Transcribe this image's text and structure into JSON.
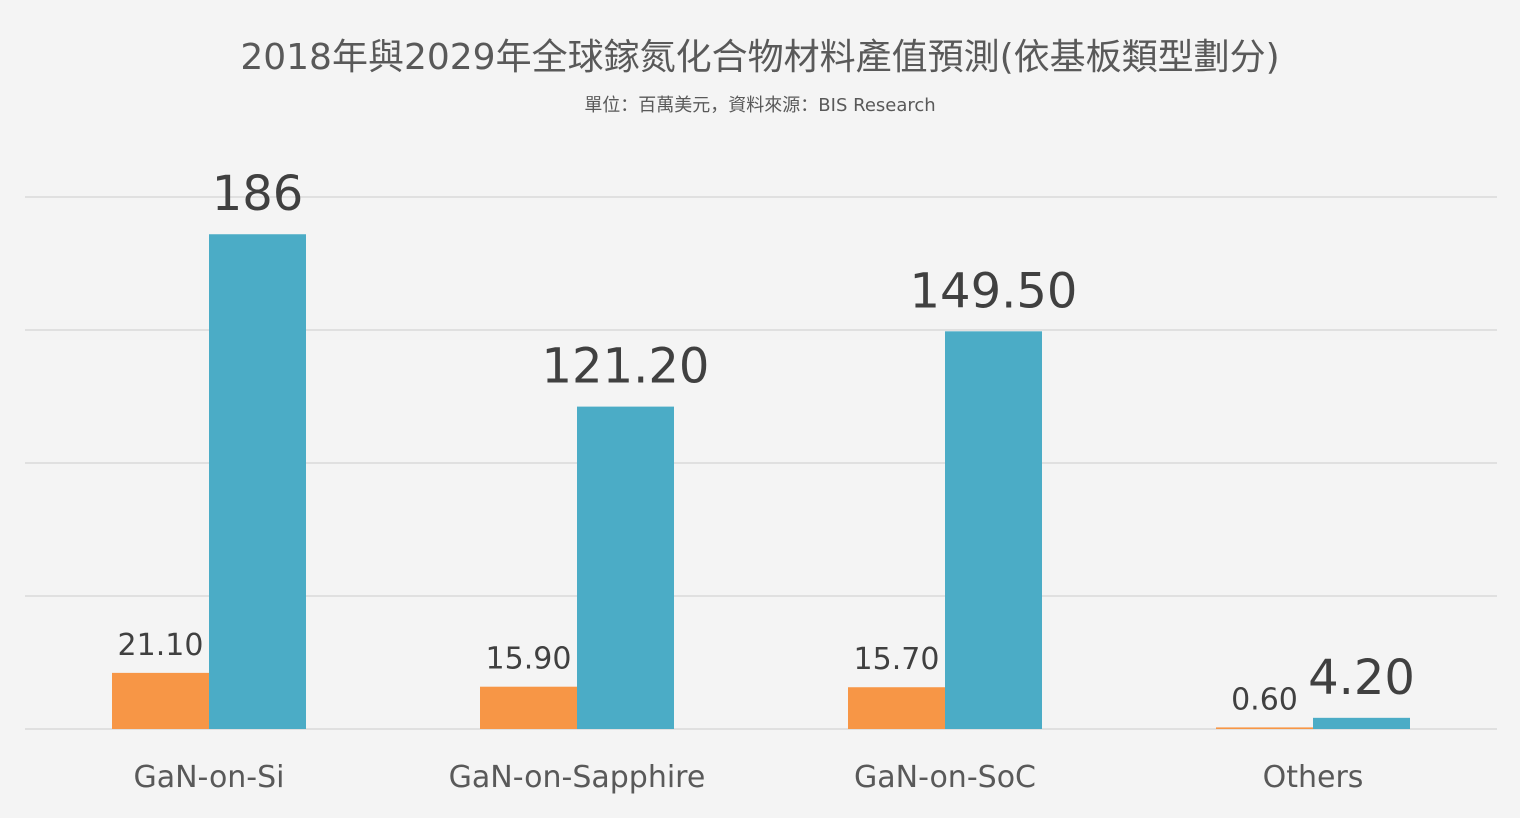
{
  "chart_data": {
    "type": "bar",
    "title": "2018年與2029年全球鎵氮化合物材料產值預測(依基板類型劃分)",
    "subtitle": "單位：百萬美元，資料來源：BIS Research",
    "categories": [
      "GaN-on-Si",
      "GaN-on-Sapphire",
      "GaN-on-SoC",
      "Others"
    ],
    "series": [
      {
        "values": [
          21.1,
          15.9,
          15.7,
          0.6
        ],
        "labels": [
          "21.10",
          "15.90",
          "15.70",
          "0.60"
        ],
        "color": "#F79646"
      },
      {
        "values": [
          186,
          121.2,
          149.5,
          4.2
        ],
        "labels": [
          "186",
          "121.20",
          "149.50",
          "4.20"
        ],
        "color": "#4BACC6"
      }
    ],
    "xlabel": "",
    "ylabel": "",
    "ylim": [
      0,
      200
    ],
    "gridlines": [
      0,
      50,
      100,
      150,
      200
    ],
    "grid": true,
    "legend": "none"
  }
}
